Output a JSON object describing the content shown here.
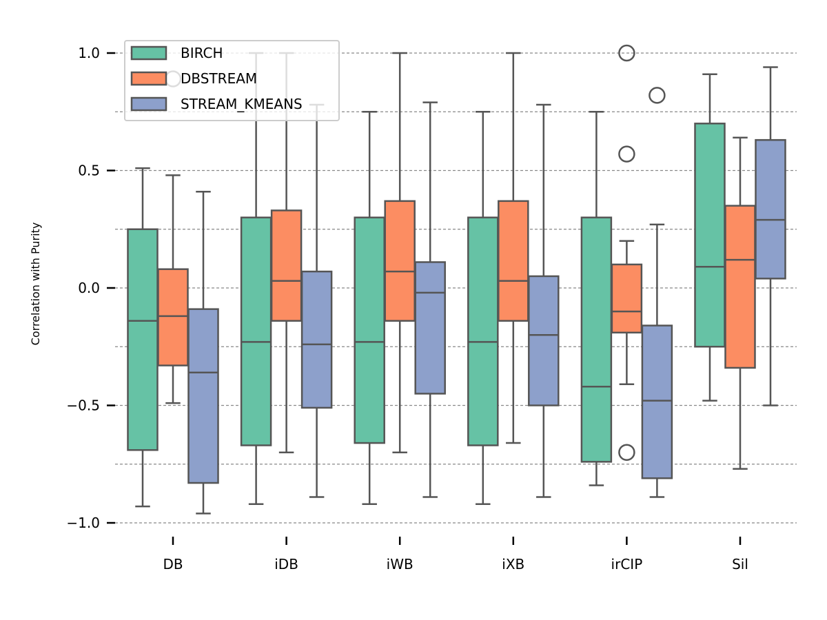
{
  "chart_data": {
    "type": "box",
    "title": "",
    "xlabel": "",
    "ylabel": "Correlation with Purity",
    "ylim": [
      -1.05,
      1.07
    ],
    "yticks": [
      1.0,
      0.5,
      0.0,
      -0.5,
      -1.0
    ],
    "ytick_labels": [
      "1.0",
      "0.5",
      "0.0",
      "−0.5",
      "−1.0"
    ],
    "grid_lines": [
      1.0,
      0.75,
      0.5,
      0.25,
      0.0,
      -0.25,
      -0.5,
      -0.75,
      -1.0
    ],
    "grid": "horizontal dashed",
    "legend_position": "top-left",
    "categories": [
      "DB",
      "iDB",
      "iWB",
      "iXB",
      "irCIP",
      "Sil"
    ],
    "series": [
      {
        "name": "BIRCH",
        "color": "#66c2a5",
        "boxes": [
          {
            "whisker_low": -0.93,
            "q1": -0.69,
            "median": -0.14,
            "q3": 0.25,
            "whisker_high": 0.51,
            "outliers": []
          },
          {
            "whisker_low": -0.92,
            "q1": -0.67,
            "median": -0.23,
            "q3": 0.3,
            "whisker_high": 1.0,
            "outliers": []
          },
          {
            "whisker_low": -0.92,
            "q1": -0.66,
            "median": -0.23,
            "q3": 0.3,
            "whisker_high": 0.75,
            "outliers": []
          },
          {
            "whisker_low": -0.92,
            "q1": -0.67,
            "median": -0.23,
            "q3": 0.3,
            "whisker_high": 0.75,
            "outliers": []
          },
          {
            "whisker_low": -0.84,
            "q1": -0.74,
            "median": -0.42,
            "q3": 0.3,
            "whisker_high": 0.75,
            "outliers": []
          },
          {
            "whisker_low": -0.48,
            "q1": -0.25,
            "median": 0.09,
            "q3": 0.7,
            "whisker_high": 0.91,
            "outliers": []
          }
        ]
      },
      {
        "name": "DBSTREAM",
        "color": "#fc8d62",
        "boxes": [
          {
            "whisker_low": -0.49,
            "q1": -0.33,
            "median": -0.12,
            "q3": 0.08,
            "whisker_high": 0.48,
            "outliers": [
              0.89
            ]
          },
          {
            "whisker_low": -0.7,
            "q1": -0.14,
            "median": 0.03,
            "q3": 0.33,
            "whisker_high": 1.0,
            "outliers": []
          },
          {
            "whisker_low": -0.7,
            "q1": -0.14,
            "median": 0.07,
            "q3": 0.37,
            "whisker_high": 1.0,
            "outliers": []
          },
          {
            "whisker_low": -0.66,
            "q1": -0.14,
            "median": 0.03,
            "q3": 0.37,
            "whisker_high": 1.0,
            "outliers": []
          },
          {
            "whisker_low": -0.41,
            "q1": -0.19,
            "median": -0.1,
            "q3": 0.1,
            "whisker_high": 0.2,
            "outliers": [
              1.0,
              0.57,
              -0.7
            ]
          },
          {
            "whisker_low": -0.77,
            "q1": -0.34,
            "median": 0.12,
            "q3": 0.35,
            "whisker_high": 0.64,
            "outliers": []
          }
        ]
      },
      {
        "name": "STREAM_KMEANS",
        "color": "#8da0cb",
        "boxes": [
          {
            "whisker_low": -0.96,
            "q1": -0.83,
            "median": -0.36,
            "q3": -0.09,
            "whisker_high": 0.41,
            "outliers": []
          },
          {
            "whisker_low": -0.89,
            "q1": -0.51,
            "median": -0.24,
            "q3": 0.07,
            "whisker_high": 0.78,
            "outliers": []
          },
          {
            "whisker_low": -0.89,
            "q1": -0.45,
            "median": -0.02,
            "q3": 0.11,
            "whisker_high": 0.79,
            "outliers": []
          },
          {
            "whisker_low": -0.89,
            "q1": -0.5,
            "median": -0.2,
            "q3": 0.05,
            "whisker_high": 0.78,
            "outliers": []
          },
          {
            "whisker_low": -0.89,
            "q1": -0.81,
            "median": -0.48,
            "q3": -0.16,
            "whisker_high": 0.27,
            "outliers": [
              0.82
            ]
          },
          {
            "whisker_low": -0.5,
            "q1": 0.04,
            "median": 0.29,
            "q3": 0.63,
            "whisker_high": 0.94,
            "outliers": []
          }
        ]
      }
    ]
  }
}
